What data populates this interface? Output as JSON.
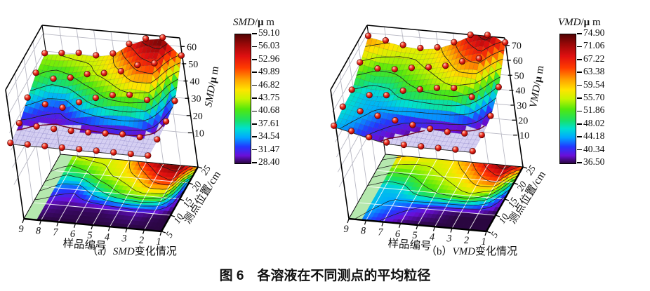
{
  "figure": {
    "title": "图 6　各溶液在不同测点的平均粒径"
  },
  "plots": [
    {
      "caption": {
        "prefix": "（a）",
        "var": "SMD",
        "suffix": "变化情况"
      },
      "colorbar_title": {
        "var": "SMD",
        "slash": "/",
        "mu": "μ",
        "rest": " m"
      },
      "z_axis_title": {
        "var": "SMD",
        "slash": "/",
        "mu": "μ",
        "rest": " m"
      }
    },
    {
      "caption": {
        "prefix": "（b）",
        "var": "VMD",
        "suffix": "变化情况"
      },
      "colorbar_title": {
        "var": "VMD",
        "slash": "/",
        "mu": "μ",
        "rest": " m"
      },
      "z_axis_title": {
        "var": "VMD",
        "slash": "/",
        "mu": "μ",
        "rest": " m"
      }
    }
  ],
  "colors": {
    "ball": "#cc1414",
    "ball_dark": "#4a0000",
    "lavender_plane": "#c9c2ee",
    "floor_base": "#b5e8ae",
    "wall_grid": "#b9b9c4",
    "contour_line": "#1c1c1c",
    "fold_line": "#6d0a2e",
    "colormap_stops": [
      [
        0.0,
        "#2a0640"
      ],
      [
        0.06,
        "#6a0fd8"
      ],
      [
        0.13,
        "#2238ff"
      ],
      [
        0.2,
        "#00a8ff"
      ],
      [
        0.27,
        "#00e0d0"
      ],
      [
        0.33,
        "#17e06a"
      ],
      [
        0.42,
        "#52e80c"
      ],
      [
        0.5,
        "#c8f400"
      ],
      [
        0.57,
        "#ffe400"
      ],
      [
        0.65,
        "#ffa000"
      ],
      [
        0.74,
        "#ff3c00"
      ],
      [
        0.83,
        "#e01010"
      ],
      [
        0.92,
        "#9c0808"
      ],
      [
        1.0,
        "#520404"
      ]
    ]
  },
  "chart_data": [
    {
      "plot": "a",
      "type": "surface",
      "title": "(a) SMD变化情况",
      "x": {
        "label": "样品编号",
        "ticks": [
          9,
          8,
          7,
          6,
          5,
          4,
          3,
          2,
          1
        ]
      },
      "y": {
        "label": "测点位置/cm",
        "ticks": [
          5,
          10,
          15,
          20,
          25
        ]
      },
      "z": {
        "label": "SMD/μm",
        "ticks": [
          10,
          20,
          30,
          40,
          50,
          60
        ],
        "axis_max": 65
      },
      "colorbar": {
        "title": "SMD/μm",
        "vmin": 28.4,
        "vmax": 59.1,
        "tick_labels": [
          "59.10",
          "56.03",
          "52.96",
          "49.89",
          "46.82",
          "43.75",
          "40.68",
          "37.61",
          "34.54",
          "31.47",
          "28.40"
        ]
      },
      "grid_note": "rows = 测点位置 5→25 cm (front→back); columns = 样品编号 9→1 (left→right); values = SMD/μm (estimated from surface colors)",
      "values": [
        [
          28.4,
          28.4,
          28.4,
          28.4,
          28.4,
          28.4,
          28.4,
          28.4,
          28.4
        ],
        [
          30.5,
          29.5,
          29.0,
          28.8,
          28.8,
          29.2,
          29.6,
          28.8,
          28.4
        ],
        [
          36.0,
          33.0,
          32.0,
          36.0,
          39.5,
          42.0,
          43.0,
          41.0,
          29.5
        ],
        [
          41.0,
          38.5,
          40.0,
          43.0,
          44.5,
          46.5,
          51.0,
          53.0,
          32.0
        ],
        [
          43.0,
          44.0,
          45.0,
          44.5,
          46.5,
          53.0,
          57.0,
          58.5,
          49.0
        ]
      ]
    },
    {
      "plot": "b",
      "type": "surface",
      "title": "(b) VMD变化情况",
      "x": {
        "label": "样品编号",
        "ticks": [
          9,
          8,
          7,
          6,
          5,
          4,
          3,
          2,
          1
        ]
      },
      "y": {
        "label": "测点位置/cm",
        "ticks": [
          5,
          10,
          15,
          20,
          25
        ]
      },
      "z": {
        "label": "VMD/μm",
        "ticks": [
          10,
          20,
          30,
          40,
          50,
          60,
          70
        ],
        "axis_max": 75
      },
      "colorbar": {
        "title": "VMD/μm",
        "vmin": 36.5,
        "vmax": 74.9,
        "tick_labels": [
          "74.90",
          "71.06",
          "67.22",
          "63.38",
          "59.54",
          "55.70",
          "51.86",
          "48.02",
          "44.18",
          "40.34",
          "36.50"
        ]
      },
      "grid_note": "rows = 测点位置 5→25 cm (front→back); columns = 样品编号 9→1 (left→right); values = VMD/μm (estimated from surface colors)",
      "values": [
        [
          45.0,
          42.5,
          39.5,
          37.0,
          36.5,
          36.5,
          36.5,
          36.5,
          36.5
        ],
        [
          47.0,
          45.0,
          43.0,
          41.0,
          39.0,
          37.5,
          36.5,
          36.5,
          36.5
        ],
        [
          47.5,
          45.0,
          46.0,
          50.0,
          52.0,
          54.0,
          55.0,
          50.0,
          38.5
        ],
        [
          55.0,
          52.0,
          52.5,
          54.5,
          56.0,
          58.0,
          62.0,
          65.0,
          47.0
        ],
        [
          62.0,
          60.0,
          58.0,
          57.0,
          58.5,
          63.0,
          69.0,
          73.5,
          66.0
        ]
      ]
    }
  ]
}
